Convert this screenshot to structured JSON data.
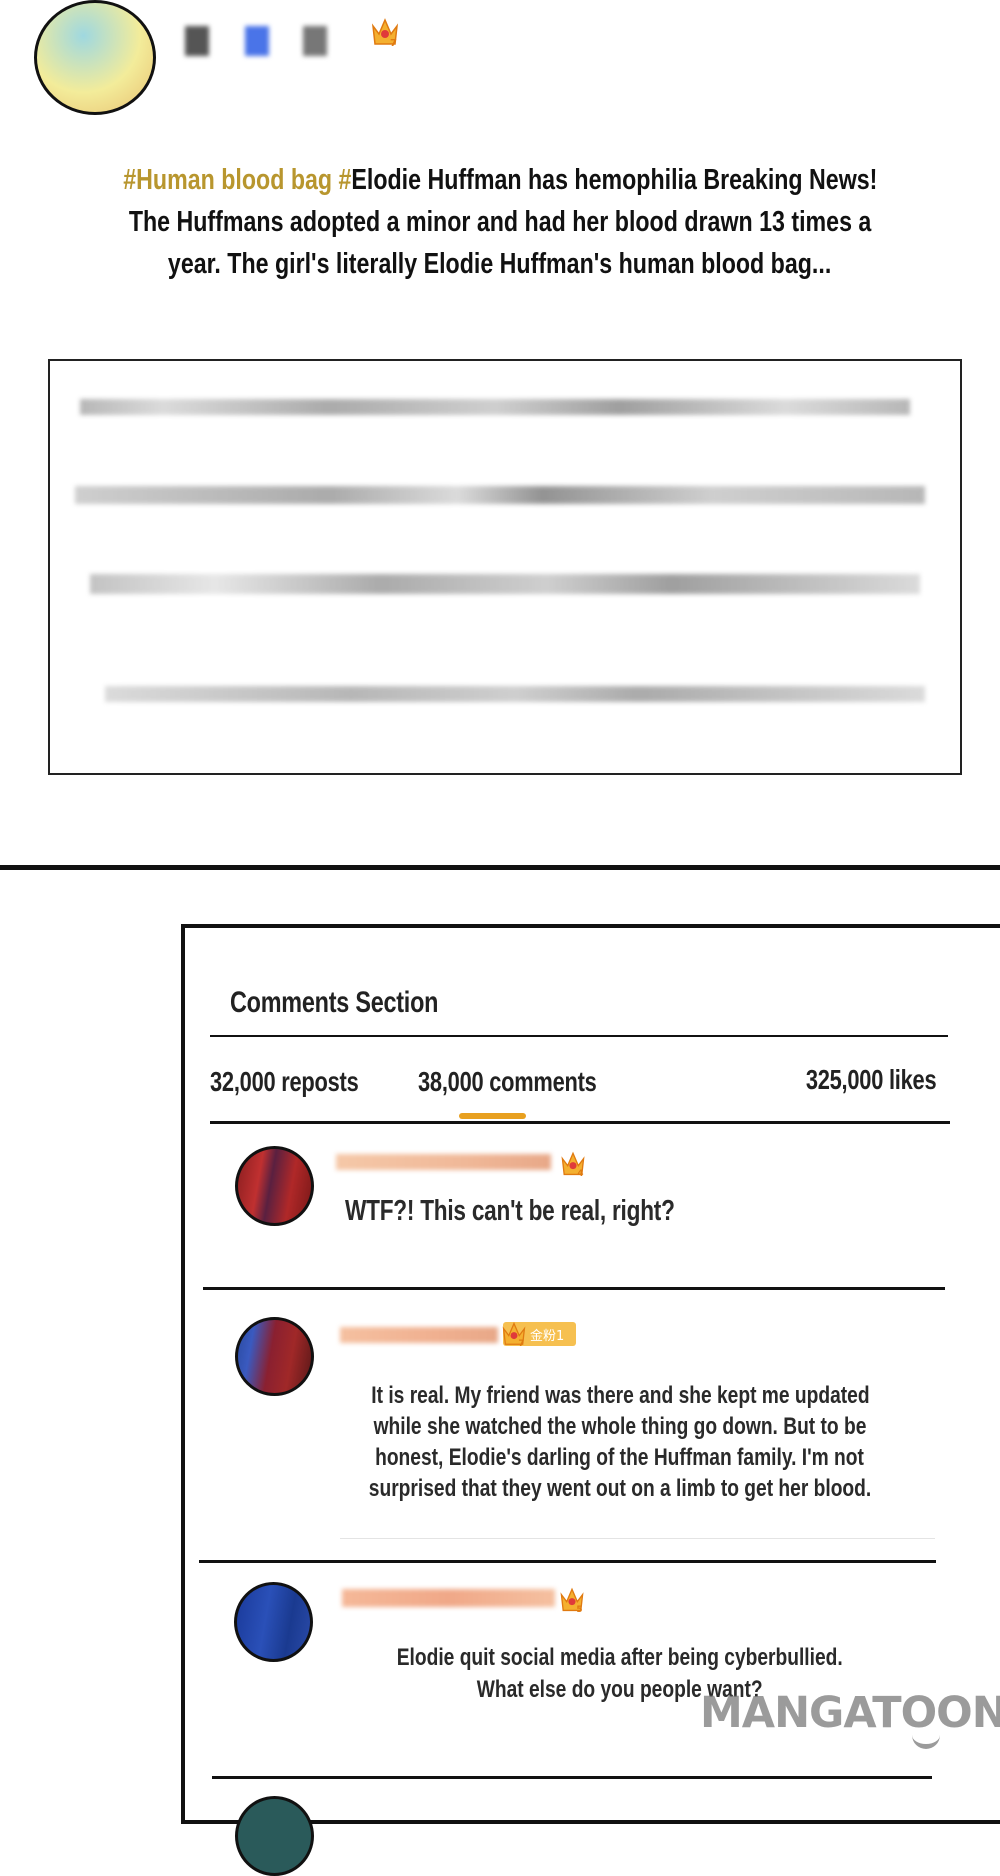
{
  "post": {
    "hashtag": "#Human blood bag #",
    "headline_rest": "Elodie Huffman has hemophilia Breaking News!",
    "headline_line2": "The Huffmans adopted a minor and had her blood drawn 13 times a",
    "headline_line3": "year. The girl's literally Elodie Huffman's human blood bag...",
    "author_level": "7",
    "hashtag_color": "#b8962e"
  },
  "comments_panel": {
    "title": "Comments Section",
    "reposts": "32,000 reposts",
    "comments": "38,000 comments",
    "likes": "325,000 likes",
    "active_tab": "comments",
    "accent_color": "#e8a020",
    "comments_list": [
      {
        "level": "4",
        "text": "WTF?! This can't be real, right?"
      },
      {
        "level": "7",
        "badge": "金粉1",
        "lines": [
          "It is real. My friend was there and she kept me updated",
          "while she watched the whole thing go down. But to be",
          "honest, Elodie's darling of the Huffman family. I'm not",
          "surprised that they went out on a limb to get her blood."
        ]
      },
      {
        "level": "5",
        "lines": [
          "Elodie quit social media after being cyberbullied.",
          "What else do you people want?"
        ]
      }
    ]
  },
  "watermark": "MANGATOON"
}
